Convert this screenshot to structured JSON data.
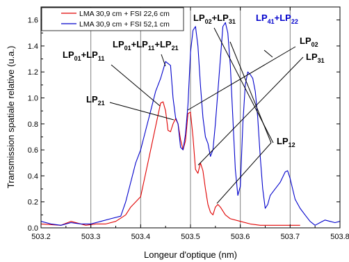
{
  "chart_data": {
    "type": "line",
    "xlabel": "Longeur d'optique (nm)",
    "ylabel": "Transmission spatiale relative (u.a.)",
    "xlim": [
      503.2,
      503.8
    ],
    "ylim": [
      0.0,
      1.7
    ],
    "xticks": [
      "503.2",
      "503.3",
      "503.4",
      "503.5",
      "503.6",
      "503.7",
      "503.8"
    ],
    "yticks": [
      "0.0",
      "0.2",
      "0.4",
      "0.6",
      "0.8",
      "1.0",
      "1.2",
      "1.4",
      "1.6"
    ],
    "vertical_gridlines_at": [
      503.3,
      503.4,
      503.5,
      503.6,
      503.7
    ],
    "legend_position": "top-left",
    "series": [
      {
        "name": "LMA 30,9 cm + FSI 22,6 cm",
        "color": "#e00000",
        "x": [
          503.2,
          503.24,
          503.26,
          503.29,
          503.31,
          503.33,
          503.35,
          503.37,
          503.38,
          503.39,
          503.4,
          503.41,
          503.42,
          503.43,
          503.44,
          503.445,
          503.45,
          503.455,
          503.46,
          503.465,
          503.47,
          503.475,
          503.48,
          503.485,
          503.49,
          503.495,
          503.5,
          503.505,
          503.51,
          503.515,
          503.52,
          503.525,
          503.53,
          503.535,
          503.54,
          503.545,
          503.55,
          503.555,
          503.56,
          503.57,
          503.58,
          503.6,
          503.62,
          503.64,
          503.66,
          503.68,
          503.7,
          503.72
        ],
        "y": [
          0.03,
          0.02,
          0.05,
          0.02,
          0.03,
          0.03,
          0.05,
          0.1,
          0.16,
          0.2,
          0.24,
          0.42,
          0.6,
          0.78,
          0.96,
          0.97,
          0.9,
          0.75,
          0.74,
          0.8,
          0.84,
          0.8,
          0.68,
          0.6,
          0.67,
          0.88,
          0.89,
          0.7,
          0.45,
          0.42,
          0.5,
          0.44,
          0.3,
          0.18,
          0.12,
          0.1,
          0.16,
          0.18,
          0.16,
          0.1,
          0.07,
          0.05,
          0.03,
          0.02,
          0.02,
          0.02,
          0.02,
          0.02
        ]
      },
      {
        "name": "LMA 30,9 cm + FSI 52,1 cm",
        "color": "#0000cc",
        "x": [
          503.2,
          503.22,
          503.24,
          503.26,
          503.28,
          503.3,
          503.32,
          503.34,
          503.36,
          503.37,
          503.38,
          503.39,
          503.4,
          503.41,
          503.42,
          503.43,
          503.44,
          503.45,
          503.46,
          503.465,
          503.47,
          503.475,
          503.48,
          503.485,
          503.49,
          503.495,
          503.5,
          503.505,
          503.51,
          503.515,
          503.52,
          503.525,
          503.53,
          503.535,
          503.54,
          503.545,
          503.55,
          503.555,
          503.56,
          503.565,
          503.57,
          503.575,
          503.58,
          503.585,
          503.59,
          503.595,
          503.6,
          503.605,
          503.61,
          503.615,
          503.62,
          503.625,
          503.63,
          503.635,
          503.64,
          503.645,
          503.65,
          503.655,
          503.66,
          503.67,
          503.68,
          503.69,
          503.695,
          503.7,
          503.705,
          503.71,
          503.72,
          503.73,
          503.74,
          503.75,
          503.76,
          503.77,
          503.78,
          503.79,
          503.8
        ],
        "y": [
          0.05,
          0.03,
          0.02,
          0.04,
          0.03,
          0.03,
          0.05,
          0.07,
          0.09,
          0.2,
          0.35,
          0.5,
          0.6,
          0.75,
          0.9,
          1.05,
          1.15,
          1.28,
          1.25,
          1.0,
          0.85,
          0.8,
          0.62,
          0.6,
          0.72,
          0.95,
          1.35,
          1.52,
          1.55,
          1.4,
          1.1,
          0.85,
          0.7,
          0.65,
          0.55,
          0.6,
          0.8,
          1.05,
          1.3,
          1.55,
          1.58,
          1.5,
          1.25,
          0.85,
          0.45,
          0.25,
          0.32,
          0.8,
          1.1,
          1.2,
          1.18,
          1.15,
          1.05,
          0.85,
          0.55,
          0.3,
          0.15,
          0.18,
          0.25,
          0.3,
          0.35,
          0.43,
          0.44,
          0.38,
          0.3,
          0.22,
          0.15,
          0.1,
          0.05,
          0.02,
          0.04,
          0.06,
          0.05,
          0.04,
          0.05
        ]
      }
    ],
    "annotations": [
      {
        "base": "LP",
        "sub": "01",
        "base2": "+LP",
        "sub2": "11",
        "color": "#000000"
      },
      {
        "base": "LP",
        "sub": "01",
        "base2": "+LP",
        "sub2": "11",
        "base3": "+LP",
        "sub3": "21",
        "color": "#000000"
      },
      {
        "base": "LP",
        "sub": "02",
        "base2": "+LP",
        "sub2": "31",
        "color": "#000000"
      },
      {
        "base": "LP",
        "sub": "41",
        "base2": "+LP",
        "sub2": "22",
        "color": "#0000cc"
      },
      {
        "base": "LP",
        "sub": "02",
        "color": "#000000"
      },
      {
        "base": "LP",
        "sub": "31",
        "color": "#000000"
      },
      {
        "base": "LP",
        "sub": "21",
        "color": "#000000"
      },
      {
        "base": "LP",
        "sub": "12",
        "color": "#000000"
      }
    ]
  }
}
